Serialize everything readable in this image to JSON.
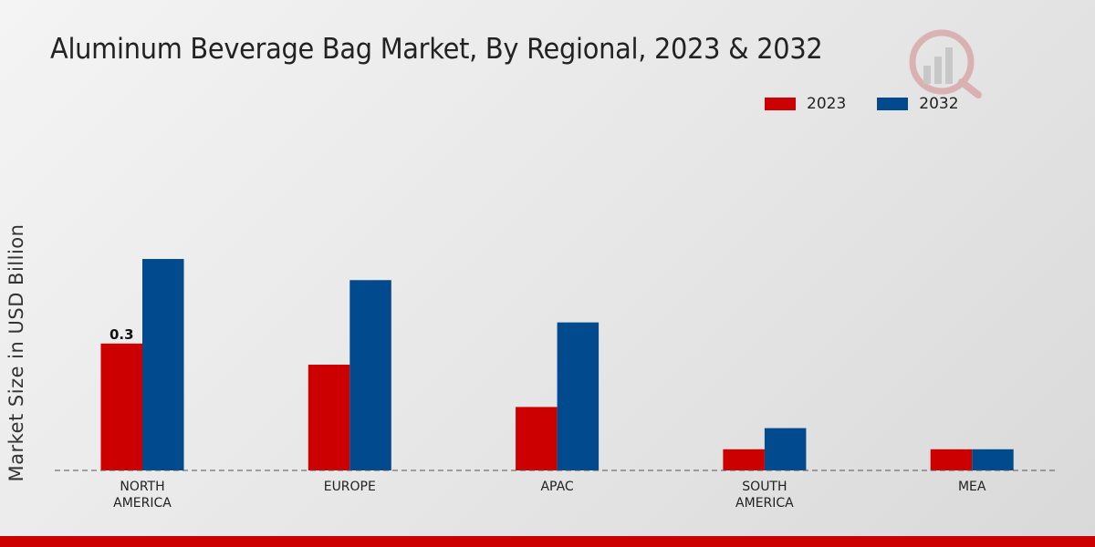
{
  "chart_data": {
    "type": "bar",
    "title": "Aluminum Beverage Bag Market, By Regional, 2023 & 2032",
    "ylabel": "Market Size in USD Billion",
    "xlabel": "",
    "categories": [
      [
        "NORTH",
        "AMERICA"
      ],
      [
        "EUROPE"
      ],
      [
        "APAC"
      ],
      [
        "SOUTH",
        "AMERICA"
      ],
      [
        "MEA"
      ]
    ],
    "series": [
      {
        "name": "2023",
        "color": "#cc0000",
        "values": [
          0.3,
          0.25,
          0.15,
          0.05,
          0.05
        ]
      },
      {
        "name": "2032",
        "color": "#004a8d",
        "values": [
          0.5,
          0.45,
          0.35,
          0.1,
          0.05
        ]
      }
    ],
    "data_labels": [
      {
        "series": 0,
        "index": 0,
        "text": "0.3"
      }
    ],
    "ylim": [
      0,
      0.72
    ],
    "grid": false,
    "legend": "top-right"
  }
}
